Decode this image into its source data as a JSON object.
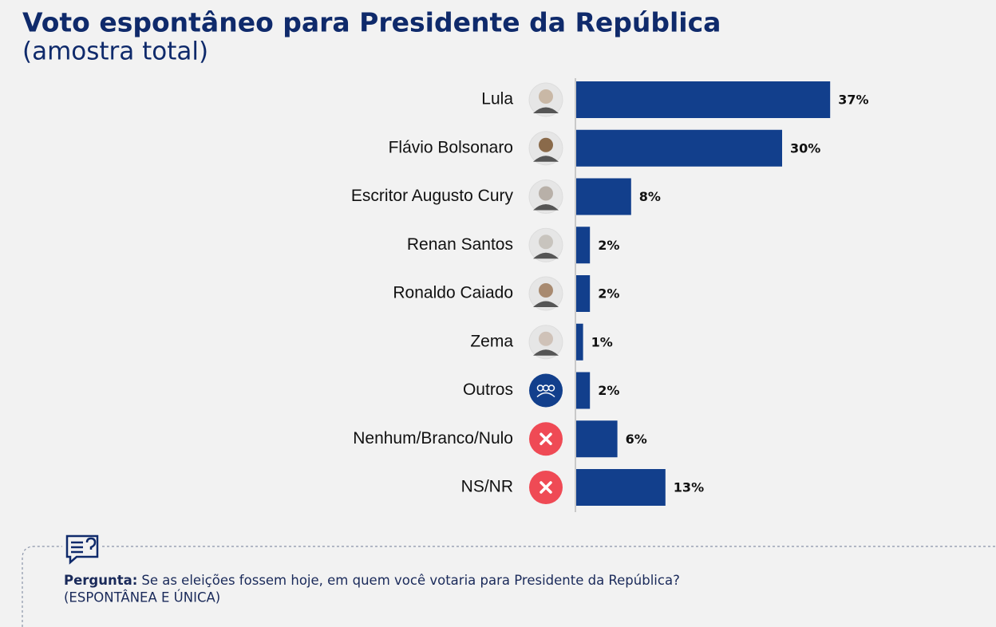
{
  "chart_data": {
    "type": "bar",
    "orientation": "horizontal",
    "title": "Voto espontâneo para Presidente da República",
    "subtitle": "(amostra total)",
    "categories": [
      "Lula",
      "Flávio Bolsonaro",
      "Escritor Augusto Cury",
      "Renan Santos",
      "Ronaldo Caiado",
      "Zema",
      "Outros",
      "Nenhum/Branco/Nulo",
      "NS/NR"
    ],
    "values": [
      37,
      30,
      8,
      2,
      2,
      1,
      2,
      6,
      13
    ],
    "value_labels": [
      "37%",
      "30%",
      "8%",
      "2%",
      "2%",
      "1%",
      "2%",
      "6%",
      "13%"
    ],
    "color": "#123f8c"
  },
  "footer": {
    "label": "Pergunta:",
    "question": "Se as eleições fossem hoje, em quem você votaria para Presidente da República?",
    "note": "(ESPONTÂNEA E ÚNICA)"
  }
}
